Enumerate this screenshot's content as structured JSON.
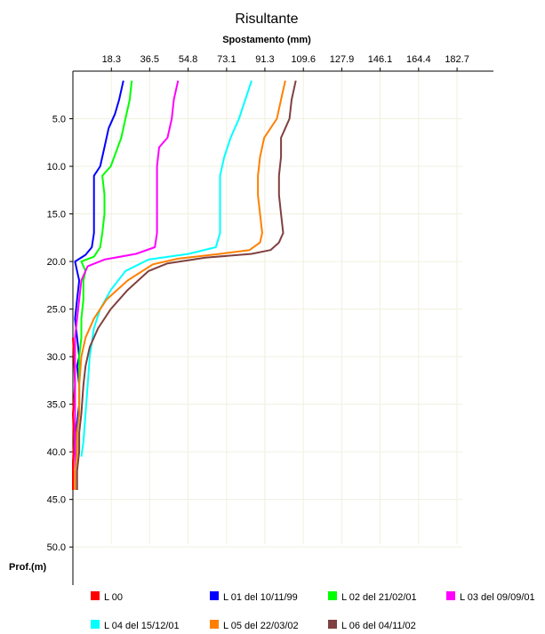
{
  "chart_data": {
    "type": "line",
    "title": "Risultante",
    "xlabel": "Spostamento (mm)",
    "ylabel": "Prof.(m)",
    "x_ticks": [
      "18.3",
      "36.5",
      "54.8",
      "73.1",
      "91.3",
      "109.6",
      "127.9",
      "146.1",
      "164.4",
      "182.7"
    ],
    "y_ticks": [
      "5.0",
      "10.0",
      "15.0",
      "20.0",
      "25.0",
      "30.0",
      "35.0",
      "40.0",
      "45.0",
      "50.0"
    ],
    "xlim": [
      0,
      200
    ],
    "ylim": [
      0,
      54
    ],
    "y_inverted": true,
    "grid": true,
    "legend_position": "bottom",
    "series": [
      {
        "name": "L 00",
        "color": "#ff0000",
        "points": [
          [
            0,
            28
          ],
          [
            0.5,
            30
          ],
          [
            1,
            33
          ],
          [
            0,
            36
          ],
          [
            0.5,
            39
          ],
          [
            0,
            41
          ],
          [
            0,
            44
          ]
        ]
      },
      {
        "name": "L 01 del 10/11/99",
        "color": "#0000ff",
        "points": [
          [
            24,
            1
          ],
          [
            22,
            3
          ],
          [
            20,
            4.5
          ],
          [
            17,
            6
          ],
          [
            15,
            8
          ],
          [
            13,
            10
          ],
          [
            10,
            11
          ],
          [
            10,
            13
          ],
          [
            10,
            15
          ],
          [
            10,
            17
          ],
          [
            9,
            18.5
          ],
          [
            6,
            19.3
          ],
          [
            1,
            20
          ],
          [
            2,
            21
          ],
          [
            3,
            22
          ],
          [
            2,
            24
          ],
          [
            1,
            26
          ],
          [
            2,
            28
          ],
          [
            3,
            30
          ],
          [
            2,
            31
          ],
          [
            3,
            33
          ],
          [
            3,
            35
          ],
          [
            2,
            37
          ],
          [
            1,
            39
          ],
          [
            1,
            41
          ],
          [
            1,
            42
          ],
          [
            1,
            44
          ]
        ]
      },
      {
        "name": "L 02 del 21/02/01",
        "color": "#00ff00",
        "points": [
          [
            28,
            1
          ],
          [
            27,
            3
          ],
          [
            25,
            5
          ],
          [
            23,
            7
          ],
          [
            18,
            10
          ],
          [
            14,
            11
          ],
          [
            15,
            13
          ],
          [
            15,
            15
          ],
          [
            14,
            17
          ],
          [
            13,
            18.5
          ],
          [
            10,
            19.5
          ],
          [
            4,
            20
          ],
          [
            6,
            21
          ],
          [
            5,
            22
          ],
          [
            5,
            24
          ],
          [
            4,
            26
          ],
          [
            4,
            28
          ],
          [
            3,
            30
          ],
          [
            3,
            32
          ],
          [
            3,
            34
          ],
          [
            3,
            36
          ],
          [
            2,
            38
          ],
          [
            2,
            40
          ],
          [
            1,
            42
          ],
          [
            1,
            44
          ]
        ]
      },
      {
        "name": "L 03 del 09/09/01",
        "color": "#ff00ff",
        "points": [
          [
            50,
            1
          ],
          [
            48,
            3
          ],
          [
            47,
            5
          ],
          [
            45,
            7
          ],
          [
            41,
            8
          ],
          [
            40,
            10
          ],
          [
            40,
            12
          ],
          [
            40,
            15
          ],
          [
            40,
            17
          ],
          [
            39,
            18.5
          ],
          [
            30,
            19.2
          ],
          [
            15,
            19.8
          ],
          [
            7,
            20.5
          ],
          [
            4,
            22
          ],
          [
            3,
            24
          ],
          [
            2,
            26
          ],
          [
            1,
            28
          ],
          [
            1,
            30
          ],
          [
            1,
            32
          ],
          [
            1,
            35
          ],
          [
            1,
            37
          ],
          [
            1,
            39
          ],
          [
            1,
            41
          ],
          [
            1,
            43
          ]
        ]
      },
      {
        "name": "L 04 del 15/12/01",
        "color": "#00ffff",
        "points": [
          [
            85,
            1
          ],
          [
            82,
            3
          ],
          [
            79,
            5
          ],
          [
            75,
            7
          ],
          [
            72,
            9
          ],
          [
            70,
            11
          ],
          [
            70,
            13
          ],
          [
            70,
            15
          ],
          [
            70,
            17
          ],
          [
            68,
            18.5
          ],
          [
            55,
            19.2
          ],
          [
            36,
            19.8
          ],
          [
            25,
            21
          ],
          [
            18,
            23
          ],
          [
            13,
            25
          ],
          [
            10,
            27
          ],
          [
            8,
            30
          ],
          [
            7,
            33
          ],
          [
            6,
            36
          ],
          [
            5,
            39
          ],
          [
            4,
            40.5
          ]
        ]
      },
      {
        "name": "L 05 del 22/03/02",
        "color": "#ff8000",
        "points": [
          [
            101,
            1
          ],
          [
            99,
            3
          ],
          [
            97,
            5
          ],
          [
            91,
            7
          ],
          [
            89,
            9
          ],
          [
            88,
            11
          ],
          [
            88,
            12
          ],
          [
            88,
            13
          ],
          [
            89,
            15
          ],
          [
            90,
            17
          ],
          [
            89,
            18
          ],
          [
            84,
            18.8
          ],
          [
            70,
            19.2
          ],
          [
            50,
            19.7
          ],
          [
            38,
            20.3
          ],
          [
            26,
            22
          ],
          [
            16,
            24
          ],
          [
            10,
            26
          ],
          [
            6,
            28
          ],
          [
            4,
            30
          ],
          [
            3,
            33
          ],
          [
            3,
            36
          ],
          [
            2,
            38
          ],
          [
            2,
            40
          ],
          [
            1,
            42
          ],
          [
            1,
            44
          ]
        ]
      },
      {
        "name": "L 06 del 04/11/02",
        "color": "#804040",
        "points": [
          [
            106,
            1
          ],
          [
            104,
            3
          ],
          [
            103,
            5
          ],
          [
            101,
            6
          ],
          [
            99,
            7
          ],
          [
            99,
            9
          ],
          [
            98,
            11
          ],
          [
            98,
            13
          ],
          [
            99,
            15
          ],
          [
            100,
            17
          ],
          [
            98,
            18
          ],
          [
            94,
            18.8
          ],
          [
            85,
            19.2
          ],
          [
            63,
            19.6
          ],
          [
            45,
            20.2
          ],
          [
            36,
            21
          ],
          [
            26,
            23
          ],
          [
            18,
            25
          ],
          [
            12,
            27
          ],
          [
            8,
            29
          ],
          [
            6,
            31
          ],
          [
            5,
            33
          ],
          [
            4,
            36
          ],
          [
            3,
            38
          ],
          [
            3,
            40
          ],
          [
            2,
            42
          ],
          [
            2,
            44
          ]
        ]
      }
    ]
  }
}
